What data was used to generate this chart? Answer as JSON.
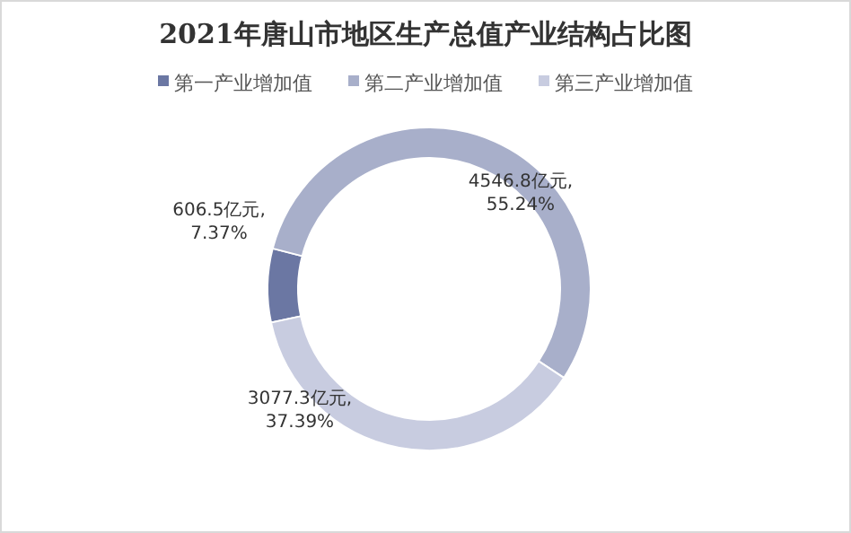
{
  "chart_data": {
    "type": "donut",
    "title": "2021年唐山市地区生产总值产业结构占比图",
    "categories": [
      "第一产业增加值",
      "第二产业增加值",
      "第三产业增加值"
    ],
    "values": [
      606.5,
      4546.8,
      3077.3
    ],
    "value_labels": [
      "606.5亿元,\n7.37%",
      "4546.8亿元,\n55.24%",
      "3077.3亿元,\n37.39%"
    ],
    "colors": [
      "#6b77a3",
      "#a8afca",
      "#c8cce0"
    ],
    "legend": "top"
  }
}
